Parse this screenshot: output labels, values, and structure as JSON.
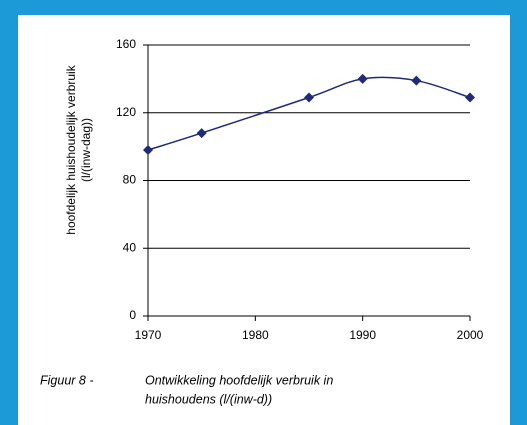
{
  "chart_data": {
    "type": "line",
    "ylabel": [
      "hoofdelijk huishoudelijk verbruik",
      "(l/(inw-dag))"
    ],
    "x": [
      1970,
      1975,
      1985,
      1990,
      1995,
      2000
    ],
    "series": [
      {
        "color": "#1f2a78",
        "values": [
          98,
          108,
          129,
          140,
          139,
          129
        ]
      }
    ],
    "xlim": [
      1970,
      2000
    ],
    "xticks": [
      1970,
      1980,
      1990,
      2000
    ],
    "ylim": [
      0,
      160
    ],
    "yticks": [
      0,
      40,
      80,
      120,
      160
    ],
    "grid": true
  },
  "caption": {
    "number": "Figuur 8 -",
    "text": [
      "Ontwikkeling hoofdelijk verbruik in",
      "huishoudens (l/(inw-d))"
    ]
  }
}
